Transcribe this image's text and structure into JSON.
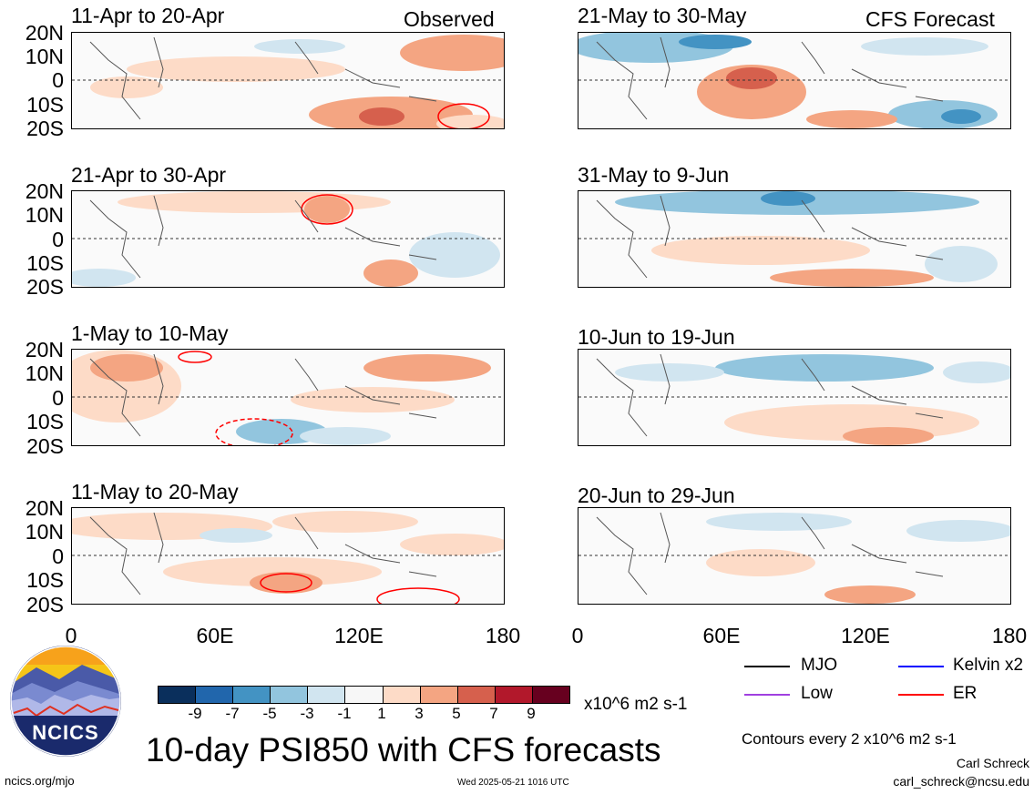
{
  "header": {
    "observed_label": "Observed",
    "forecast_label": "CFS Forecast"
  },
  "panels": {
    "observed": [
      {
        "title": "11-Apr to 20-Apr"
      },
      {
        "title": "21-Apr to 30-Apr"
      },
      {
        "title": "1-May to 10-May"
      },
      {
        "title": "11-May to 20-May"
      }
    ],
    "forecast": [
      {
        "title": "21-May to 30-May"
      },
      {
        "title": "31-May to 9-Jun"
      },
      {
        "title": "10-Jun to 19-Jun"
      },
      {
        "title": "20-Jun to 29-Jun"
      }
    ]
  },
  "axes": {
    "lat_labels": [
      "20N",
      "10N",
      "0",
      "10S",
      "20S"
    ],
    "lon_labels": [
      "0",
      "60E",
      "120E",
      "180"
    ]
  },
  "colorbar": {
    "ticks": [
      "-9",
      "-7",
      "-5",
      "-3",
      "-1",
      "1",
      "3",
      "5",
      "7",
      "9"
    ],
    "units": "x10^6 m2 s-1",
    "colors": [
      "#0a2f5c",
      "#2166ac",
      "#4393c3",
      "#92c5de",
      "#d1e5f0",
      "#f7f7f7",
      "#fddbc7",
      "#f4a582",
      "#d6604d",
      "#b2182b",
      "#67001f"
    ]
  },
  "legend": {
    "items": [
      {
        "label": "MJO",
        "color": "#000000"
      },
      {
        "label": "Kelvin x2",
        "color": "#0000ff"
      },
      {
        "label": "Low",
        "color": "#a040e0"
      },
      {
        "label": "ER",
        "color": "#ff0000"
      }
    ],
    "contours_note": "Contours every 2 x10^6 m2 s-1"
  },
  "branding": {
    "logo_text": "NCICS",
    "main_title": "10-day PSI850 with CFS forecasts",
    "website": "ncics.org/mjo",
    "timestamp": "Wed 2025-05-21 1016 UTC",
    "author": "Carl Schreck",
    "email": "carl_schreck@ncsu.edu"
  }
}
